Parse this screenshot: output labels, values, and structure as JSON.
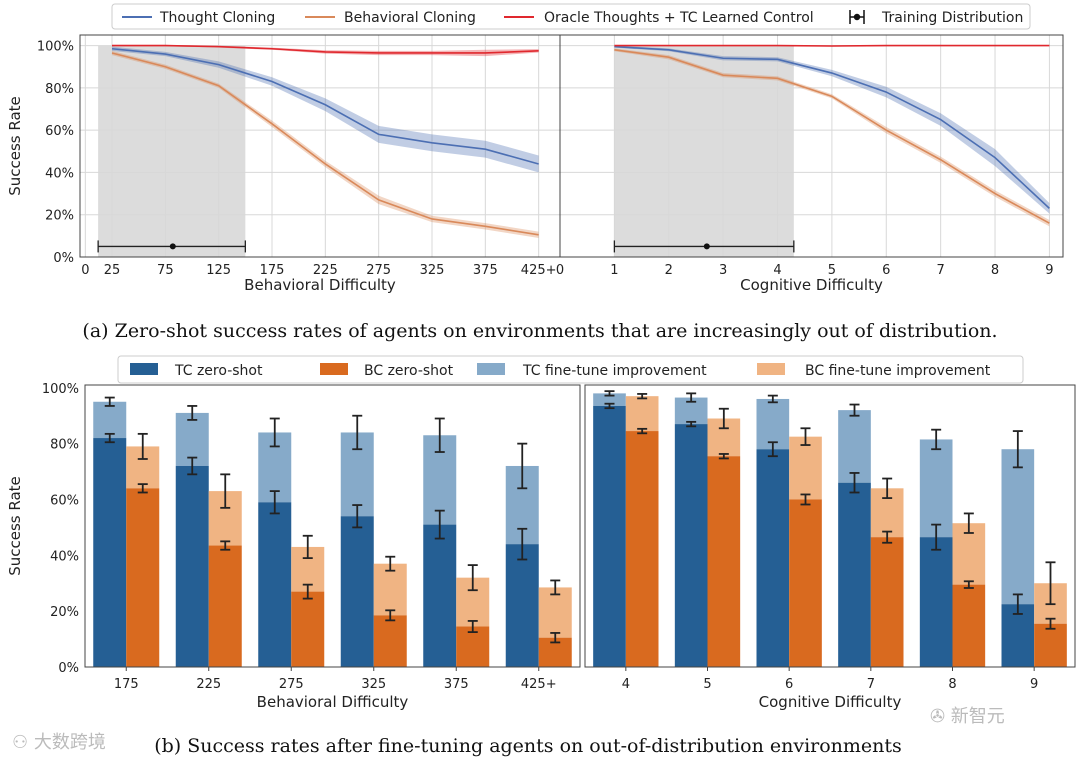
{
  "colors": {
    "tc": "#4c6fb3",
    "bc": "#d9895a",
    "oracle": "#e0282e",
    "tc_zero": "#255f94",
    "bc_zero": "#d96a1f",
    "tc_ft": "#86aac9",
    "bc_ft": "#f0b483",
    "shade": "#dcdcdc"
  },
  "legend_top": [
    "Thought Cloning",
    "Behavioral Cloning",
    "Oracle Thoughts + TC Learned Control",
    "Training Distribution"
  ],
  "legend_bottom": [
    "TC zero-shot",
    "BC zero-shot",
    "TC fine-tune improvement",
    "BC fine-tune improvement"
  ],
  "captions": {
    "a": "(a) Zero-shot success rates of agents on environments that are increasingly out of distribution.",
    "b": "(b) Success rates after fine-tuning agents on out-of-distribution environments"
  },
  "watermarks": [
    "大数跨境",
    "新智元"
  ],
  "chart_data": [
    {
      "type": "line",
      "title": "",
      "xlabel": "Behavioral Difficulty",
      "ylabel": "Success Rate",
      "xticks": [
        0,
        25,
        75,
        125,
        175,
        225,
        275,
        325,
        375,
        425
      ],
      "xtick_labels": [
        "0",
        "25",
        "75",
        "125",
        "175",
        "225",
        "275",
        "325",
        "375",
        "425+"
      ],
      "yticks": [
        0,
        20,
        40,
        60,
        80,
        100
      ],
      "ytick_labels": [
        "0%",
        "20%",
        "40%",
        "60%",
        "80%",
        "100%"
      ],
      "xlim": [
        -5,
        445
      ],
      "ylim": [
        0,
        105
      ],
      "grid": true,
      "x": [
        25,
        75,
        125,
        175,
        225,
        275,
        325,
        375,
        425
      ],
      "series": [
        {
          "name": "Thought Cloning",
          "key": "tc",
          "values": [
            98.5,
            96,
            91,
            83,
            72,
            58,
            54,
            51,
            44
          ],
          "band": [
            1,
            1,
            1.5,
            2,
            3,
            4,
            4,
            4,
            4
          ]
        },
        {
          "name": "Behavioral Cloning",
          "key": "bc",
          "values": [
            96.5,
            90,
            81,
            63,
            44,
            27,
            18,
            14.5,
            10.5
          ],
          "band": [
            1,
            1,
            1,
            1.5,
            1.5,
            2,
            1.5,
            1.5,
            1.5
          ]
        },
        {
          "name": "Oracle Thoughts + TC Learned Control",
          "key": "oracle",
          "values": [
            100,
            100,
            99.5,
            98.5,
            97,
            96.5,
            96.5,
            96.5,
            97.5
          ],
          "band": [
            0.3,
            0.3,
            0.5,
            0.5,
            0.8,
            1,
            1,
            1.5,
            0.8
          ]
        }
      ],
      "training_distribution": {
        "range": [
          12,
          150
        ],
        "mean": 82
      }
    },
    {
      "type": "line",
      "title": "",
      "xlabel": "Cognitive Difficulty",
      "ylabel": "",
      "xticks": [
        0,
        1,
        2,
        3,
        4,
        5,
        6,
        7,
        8,
        9
      ],
      "xtick_labels": [
        "0",
        "1",
        "2",
        "3",
        "4",
        "5",
        "6",
        "7",
        "8",
        "9"
      ],
      "xlim": [
        0,
        9.25
      ],
      "ylim": [
        0,
        105
      ],
      "grid": true,
      "x": [
        1,
        2,
        3,
        4,
        5,
        6,
        7,
        8,
        9
      ],
      "series": [
        {
          "name": "Thought Cloning",
          "key": "tc",
          "values": [
            99.5,
            98,
            94,
            93.5,
            87,
            78,
            65,
            47,
            23
          ],
          "band": [
            0.5,
            0.7,
            1,
            1,
            1.5,
            2.5,
            3,
            4,
            2.5
          ]
        },
        {
          "name": "Behavioral Cloning",
          "key": "bc",
          "values": [
            98,
            94.5,
            86,
            84.5,
            76,
            60,
            46,
            30,
            16
          ],
          "band": [
            0.7,
            1,
            1,
            1,
            1,
            1.5,
            1.5,
            1.5,
            1.5
          ]
        },
        {
          "name": "Oracle Thoughts + TC Learned Control",
          "key": "oracle",
          "values": [
            100,
            100,
            100,
            100,
            99.8,
            100,
            100,
            100,
            100
          ],
          "band": [
            0.2,
            0.2,
            0.2,
            0.2,
            0.3,
            0.2,
            0.2,
            0.2,
            0.2
          ]
        }
      ],
      "training_distribution": {
        "range": [
          1,
          4.3
        ],
        "mean": 2.7
      }
    },
    {
      "type": "bar",
      "title": "",
      "xlabel": "Behavioral Difficulty",
      "ylabel": "Success Rate",
      "categories": [
        "175",
        "225",
        "275",
        "325",
        "375",
        "425+"
      ],
      "yticks": [
        0,
        20,
        40,
        60,
        80,
        100
      ],
      "ytick_labels": [
        "0%",
        "20%",
        "40%",
        "60%",
        "80%",
        "100%"
      ],
      "ylim": [
        0,
        101
      ],
      "series": [
        {
          "name": "TC zero-shot",
          "values": [
            82,
            72,
            59,
            54,
            51,
            44
          ],
          "err": [
            1.5,
            3,
            4,
            4,
            5,
            5.5
          ]
        },
        {
          "name": "BC zero-shot",
          "values": [
            64,
            43.5,
            27,
            18.5,
            14.5,
            10.5
          ],
          "err": [
            1.5,
            1.5,
            2.5,
            1.8,
            2,
            1.7
          ]
        },
        {
          "name": "TC fine-tune improvement",
          "totals": [
            95,
            91,
            84,
            84,
            83,
            72
          ],
          "err": [
            1.5,
            2.5,
            5,
            6,
            6,
            8
          ]
        },
        {
          "name": "BC fine-tune improvement",
          "totals": [
            79,
            63,
            43,
            37,
            32,
            28.5
          ],
          "err": [
            4.5,
            6,
            4,
            2.5,
            4.5,
            2.5
          ]
        }
      ]
    },
    {
      "type": "bar",
      "title": "",
      "xlabel": "Cognitive Difficulty",
      "ylabel": "",
      "categories": [
        "4",
        "5",
        "6",
        "7",
        "8",
        "9"
      ],
      "ylim": [
        0,
        101
      ],
      "series": [
        {
          "name": "TC zero-shot",
          "values": [
            93.5,
            87,
            78,
            66,
            46.5,
            22.5
          ],
          "err": [
            0.8,
            0.8,
            2.5,
            3.5,
            4.5,
            3.5
          ]
        },
        {
          "name": "BC zero-shot",
          "values": [
            84.5,
            75.5,
            60,
            46.5,
            29.5,
            15.5
          ],
          "err": [
            0.8,
            0.8,
            1.8,
            2,
            1.2,
            1.8
          ]
        },
        {
          "name": "TC fine-tune improvement",
          "totals": [
            98,
            96.5,
            96,
            92,
            81.5,
            78
          ],
          "err": [
            0.8,
            1.5,
            1.2,
            2,
            3.5,
            6.5
          ]
        },
        {
          "name": "BC fine-tune improvement",
          "totals": [
            97,
            89,
            82.5,
            64,
            51.5,
            30
          ],
          "err": [
            0.8,
            3.5,
            3,
            3.5,
            3.5,
            7.5
          ]
        }
      ]
    }
  ]
}
